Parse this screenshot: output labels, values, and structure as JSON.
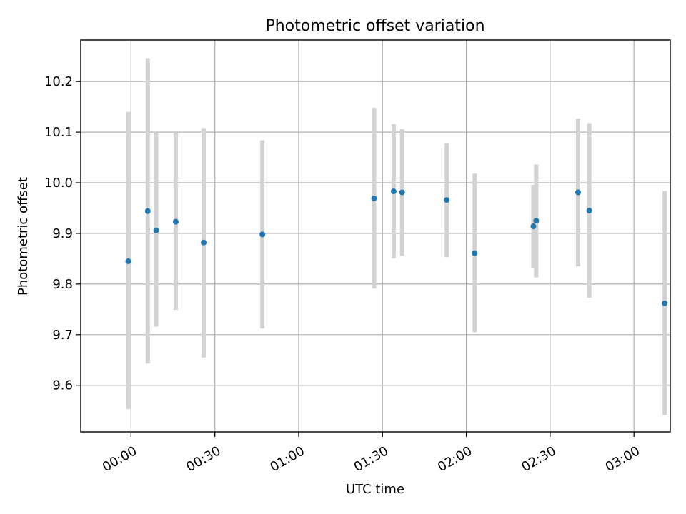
{
  "chart_data": {
    "type": "scatter",
    "title": "Photometric offset variation",
    "xlabel": "UTC time",
    "ylabel": "Photometric offset",
    "xlim": [
      "23:42",
      "03:13"
    ],
    "ylim": [
      9.508,
      10.282
    ],
    "x_ticks": [
      "00:00",
      "00:30",
      "01:00",
      "01:30",
      "02:00",
      "02:30",
      "03:00"
    ],
    "y_ticks": [
      "9.6",
      "9.7",
      "9.8",
      "9.9",
      "10.0",
      "10.1",
      "10.2"
    ],
    "grid": true,
    "points": [
      {
        "x": "23:59",
        "y": 9.845,
        "ymin": 9.553,
        "ymax": 10.14
      },
      {
        "x": "00:06",
        "y": 9.944,
        "ymin": 9.643,
        "ymax": 10.246
      },
      {
        "x": "00:09",
        "y": 9.906,
        "ymin": 9.716,
        "ymax": 10.1
      },
      {
        "x": "00:16",
        "y": 9.923,
        "ymin": 9.749,
        "ymax": 10.1
      },
      {
        "x": "00:26",
        "y": 9.882,
        "ymin": 9.655,
        "ymax": 10.108
      },
      {
        "x": "00:47",
        "y": 9.898,
        "ymin": 9.712,
        "ymax": 10.084
      },
      {
        "x": "01:27",
        "y": 9.969,
        "ymin": 9.791,
        "ymax": 10.148
      },
      {
        "x": "01:34",
        "y": 9.983,
        "ymin": 9.851,
        "ymax": 10.116
      },
      {
        "x": "01:37",
        "y": 9.981,
        "ymin": 9.856,
        "ymax": 10.106
      },
      {
        "x": "01:53",
        "y": 9.966,
        "ymin": 9.853,
        "ymax": 10.078
      },
      {
        "x": "02:03",
        "y": 9.861,
        "ymin": 9.705,
        "ymax": 10.018
      },
      {
        "x": "02:24",
        "y": 9.914,
        "ymin": 9.831,
        "ymax": 9.996
      },
      {
        "x": "02:25",
        "y": 9.925,
        "ymin": 9.813,
        "ymax": 10.036
      },
      {
        "x": "02:40",
        "y": 9.981,
        "ymin": 9.835,
        "ymax": 10.127
      },
      {
        "x": "02:44",
        "y": 9.945,
        "ymin": 9.773,
        "ymax": 10.118
      },
      {
        "x": "03:11",
        "y": 9.762,
        "ymin": 9.541,
        "ymax": 9.984
      }
    ]
  }
}
